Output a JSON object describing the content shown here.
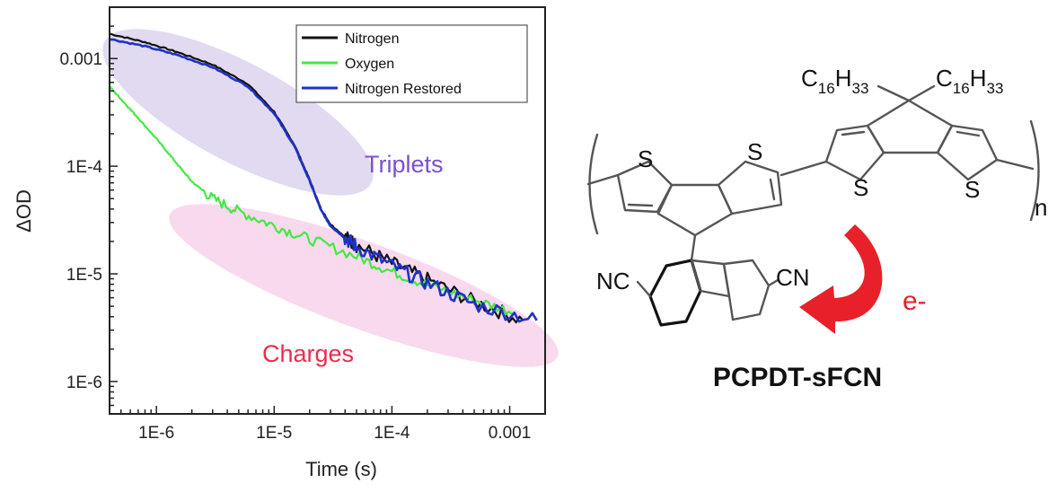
{
  "chart_data": {
    "type": "line",
    "xscale": "log",
    "yscale": "log",
    "xlabel": "Time (s)",
    "ylabel": "ΔOD",
    "xlim": [
      4e-07,
      0.002
    ],
    "ylim": [
      5e-07,
      0.003
    ],
    "x_ticks": [
      {
        "value": 1e-06,
        "label": "1E-6"
      },
      {
        "value": 1e-05,
        "label": "1E-5"
      },
      {
        "value": 0.0001,
        "label": "1E-4"
      },
      {
        "value": 0.001,
        "label": "0.001"
      }
    ],
    "y_ticks": [
      {
        "value": 1e-06,
        "label": "1E-6"
      },
      {
        "value": 1e-05,
        "label": "1E-5"
      },
      {
        "value": 0.0001,
        "label": "1E-4"
      },
      {
        "value": 0.001,
        "label": "0.001"
      }
    ],
    "legend_position": "top-right",
    "series": [
      {
        "name": "Nitrogen",
        "color": "#111111",
        "x": [
          4e-07,
          8e-07,
          1.5e-06,
          3e-06,
          6e-06,
          1e-05,
          1.5e-05,
          2e-05,
          2.5e-05,
          3e-05,
          4e-05,
          5e-05,
          0.0001,
          0.0002,
          0.0005,
          0.0013
        ],
        "y": [
          0.0017,
          0.00142,
          0.00115,
          0.00088,
          0.00058,
          0.00032,
          0.000155,
          7.5e-05,
          4e-05,
          2.9e-05,
          2.2e-05,
          1.85e-05,
          1.25e-05,
          8.8e-06,
          5.5e-06,
          3.7e-06
        ]
      },
      {
        "name": "Oxygen",
        "color": "#44e844",
        "x": [
          4e-07,
          5e-07,
          7e-07,
          1e-06,
          1.5e-06,
          2e-06,
          3e-06,
          5e-06,
          1e-05,
          2e-05,
          5e-05,
          0.0001,
          0.0002,
          0.0005,
          0.0011
        ],
        "y": [
          0.00055,
          0.00042,
          0.00028,
          0.00018,
          0.000105,
          7.2e-05,
          5e-05,
          3.8e-05,
          2.8e-05,
          2.1e-05,
          1.45e-05,
          1.05e-05,
          7.9e-06,
          5.7e-06,
          4.4e-06
        ]
      },
      {
        "name": "Nitrogen Restored",
        "color": "#1e32c8",
        "x": [
          4e-07,
          8e-07,
          1.5e-06,
          3e-06,
          6e-06,
          1e-05,
          1.5e-05,
          2e-05,
          2.5e-05,
          3e-05,
          4e-05,
          5e-05,
          0.0001,
          0.0002,
          0.0005,
          0.0017
        ],
        "y": [
          0.00152,
          0.0013,
          0.00108,
          0.00083,
          0.00055,
          0.00031,
          0.00015,
          7.3e-05,
          3.9e-05,
          2.8e-05,
          2.15e-05,
          1.8e-05,
          1.18e-05,
          8.2e-06,
          5.2e-06,
          3.7e-06
        ]
      }
    ],
    "annotations": [
      {
        "text": "Triplets",
        "color": "#7a4fd8",
        "shade": "#d8d0ec"
      },
      {
        "text": "Charges",
        "color": "#ee2a4c",
        "shade": "#f8d0e8"
      }
    ]
  },
  "structure": {
    "compound_name": "PCPDT-sFCN",
    "electron_label": "e-",
    "arrow_color": "#e8202a",
    "atoms": {
      "s1": "S",
      "s2": "S",
      "s3": "S",
      "s4": "S",
      "cn_left": "NC",
      "cn_right": "CN",
      "chain_left": "C",
      "chain_left_sub1": "16",
      "chain_left_mid": "H",
      "chain_left_sub2": "33",
      "chain_right": "C",
      "chain_right_sub1": "16",
      "chain_right_mid": "H",
      "chain_right_sub2": "33",
      "repeat_n": "n"
    }
  }
}
